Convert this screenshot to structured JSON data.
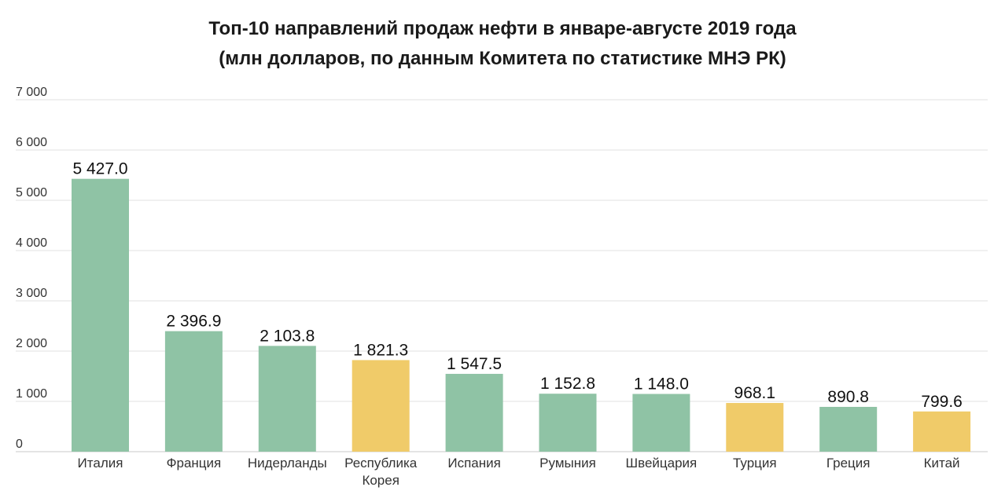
{
  "title": "Топ-10 направлений продаж нефти в январе-августе 2019 года",
  "subtitle": "(млн долларов, по данным Комитета по статистике МНЭ РК)",
  "colors": {
    "green": "#8fc3a5",
    "yellow": "#f0cb69",
    "grid": "#e2e2e2",
    "axis": "#c8c8c8"
  },
  "chart_data": {
    "type": "bar",
    "title": "Топ-10 направлений продаж нефти в январе-августе 2019 года",
    "subtitle": "(млн долларов, по данным Комитета по статистике МНЭ РК)",
    "xlabel": "",
    "ylabel": "",
    "ylim": [
      0,
      7000
    ],
    "yticks": [
      0,
      1000,
      2000,
      3000,
      4000,
      5000,
      6000,
      7000
    ],
    "ytick_labels": [
      "0",
      "1 000",
      "2 000",
      "3 000",
      "4 000",
      "5 000",
      "6 000",
      "7 000"
    ],
    "grid": true,
    "categories": [
      [
        "Италия"
      ],
      [
        "Франция"
      ],
      [
        "Нидерланды"
      ],
      [
        "Республика",
        "Корея"
      ],
      [
        "Испания"
      ],
      [
        "Румыния"
      ],
      [
        "Швейцария"
      ],
      [
        "Турция"
      ],
      [
        "Греция"
      ],
      [
        "Китай"
      ]
    ],
    "values": [
      5427.0,
      2396.9,
      2103.8,
      1821.3,
      1547.5,
      1152.8,
      1148.0,
      968.1,
      890.8,
      799.6
    ],
    "value_labels": [
      "5 427.0",
      "2 396.9",
      "2 103.8",
      "1 821.3",
      "1 547.5",
      "1 152.8",
      "1 148.0",
      "968.1",
      "890.8",
      "799.6"
    ],
    "bar_colors": [
      "green",
      "green",
      "green",
      "yellow",
      "green",
      "green",
      "green",
      "yellow",
      "green",
      "yellow"
    ]
  }
}
